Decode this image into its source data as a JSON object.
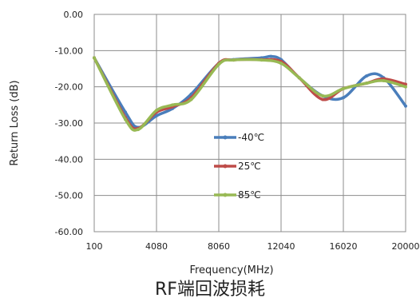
{
  "chart_data": {
    "type": "line",
    "title": "RF端回波损耗",
    "xlabel": "Frequency(MHz)",
    "ylabel": "Return Loss (dB)",
    "xlim": [
      100,
      20000
    ],
    "ylim": [
      -60,
      0
    ],
    "x_ticks": [
      100,
      4080,
      8060,
      12040,
      16020,
      20000
    ],
    "x_tick_labels": [
      "100",
      "4080",
      "8060",
      "12040",
      "16020",
      "20000"
    ],
    "y_ticks": [
      0,
      -10,
      -20,
      -30,
      -40,
      -50,
      -60
    ],
    "y_tick_labels": [
      "0.00",
      "-10.00",
      "-20.00",
      "-30.00",
      "-40.00",
      "-50.00",
      "-60.00"
    ],
    "grid": true,
    "legend_position": "center",
    "series": [
      {
        "name": "-40℃",
        "color": "#4a7ebb",
        "x": [
          100,
          2090,
          2900,
          4080,
          5100,
          6300,
          8060,
          9000,
          10800,
          11400,
          12040,
          13200,
          14700,
          16020,
          17500,
          18600,
          20000
        ],
        "y": [
          -12,
          -27,
          -31.2,
          -28,
          -26,
          -22,
          -13.5,
          -12.5,
          -12,
          -11.6,
          -12.5,
          -17.5,
          -22.5,
          -23,
          -17,
          -17.5,
          -25.3
        ]
      },
      {
        "name": "25℃",
        "color": "#be4b48",
        "x": [
          100,
          2090,
          2900,
          4080,
          5100,
          6300,
          8060,
          9000,
          10800,
          12040,
          13200,
          14700,
          16020,
          17500,
          18600,
          20000
        ],
        "y": [
          -12,
          -28.5,
          -31.5,
          -27,
          -25.5,
          -23,
          -13.5,
          -12.6,
          -12.5,
          -13,
          -17.5,
          -23.5,
          -20.5,
          -19,
          -17.8,
          -19.3
        ]
      },
      {
        "name": "85℃",
        "color": "#98b954",
        "x": [
          100,
          2090,
          2900,
          4080,
          5100,
          6300,
          8060,
          9000,
          10800,
          12040,
          13200,
          14700,
          16020,
          17500,
          18600,
          20000
        ],
        "y": [
          -12,
          -29,
          -31.8,
          -26.5,
          -25,
          -23.5,
          -13.8,
          -12.6,
          -12.6,
          -13.5,
          -17.5,
          -22.5,
          -20.5,
          -19,
          -18.3,
          -20
        ]
      }
    ]
  }
}
